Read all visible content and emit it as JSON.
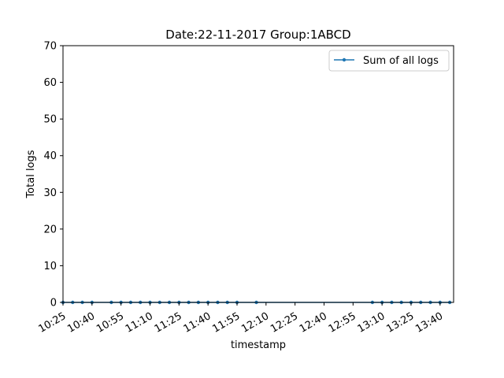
{
  "chart_data": {
    "type": "line",
    "title": "Date:22-11-2017  Group:1ABCD",
    "xlabel": "timestamp",
    "ylabel": "Total logs",
    "x_tick_labels": [
      "10:25",
      "10:40",
      "10:55",
      "11:10",
      "11:25",
      "11:40",
      "11:55",
      "12:10",
      "12:25",
      "12:40",
      "12:55",
      "13:10",
      "13:25",
      "13:40"
    ],
    "x_domain": [
      "10:25",
      "13:47"
    ],
    "ylim": [
      0,
      70
    ],
    "y_ticks": [
      0,
      10,
      20,
      30,
      40,
      50,
      60,
      70
    ],
    "grid": false,
    "legend_position": "top-right",
    "series": [
      {
        "name": "Sum of all logs",
        "color": "#1f77b4",
        "marker": "dot",
        "x": [
          "10:25",
          "10:30",
          "10:35",
          "10:40",
          "10:50",
          "10:55",
          "11:00",
          "11:05",
          "11:10",
          "11:15",
          "11:20",
          "11:25",
          "11:30",
          "11:35",
          "11:40",
          "11:45",
          "11:50",
          "11:55",
          "12:05",
          "13:05",
          "13:10",
          "13:15",
          "13:20",
          "13:25",
          "13:30",
          "13:35",
          "13:40",
          "13:45"
        ],
        "values": [
          0,
          0,
          0,
          0,
          0,
          0,
          0,
          0,
          0,
          0,
          0,
          0,
          0,
          0,
          0,
          0,
          0,
          0,
          0,
          0,
          0,
          0,
          0,
          0,
          0,
          0,
          0,
          0
        ]
      }
    ]
  }
}
